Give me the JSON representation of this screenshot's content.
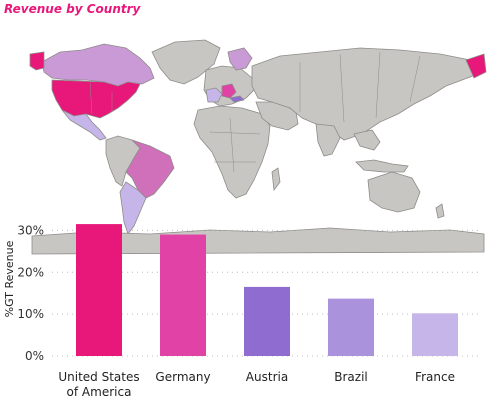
{
  "title": "Revenue by Country",
  "colors": {
    "title": "#e8177a",
    "land": "#c8c6c2",
    "usa": "#e8177a",
    "germany": "#e042a5",
    "austria": "#8f6dd0",
    "brazil": "#aa92dc",
    "france": "#c6b5e8",
    "canada": "#c99ad6",
    "mid": "#d070bb"
  },
  "chart_data": {
    "type": "bar",
    "categories": [
      "United States of America",
      "Germany",
      "Austria",
      "Brazil",
      "France"
    ],
    "category_lines": [
      [
        "United States",
        "of America"
      ],
      [
        "Germany"
      ],
      [
        "Austria"
      ],
      [
        "Brazil"
      ],
      [
        "France"
      ]
    ],
    "values": [
      31.5,
      29.0,
      16.5,
      13.7,
      10.2
    ],
    "bar_colors": [
      "#e8177a",
      "#e042a5",
      "#8f6dd0",
      "#aa92dc",
      "#c6b5e8"
    ],
    "ylabel": "%GT Revenue",
    "yticks": [
      "0%",
      "10%",
      "20%",
      "30%"
    ],
    "ytick_values": [
      0,
      10,
      20,
      30
    ],
    "ylim": [
      0,
      32
    ],
    "grid": true
  }
}
